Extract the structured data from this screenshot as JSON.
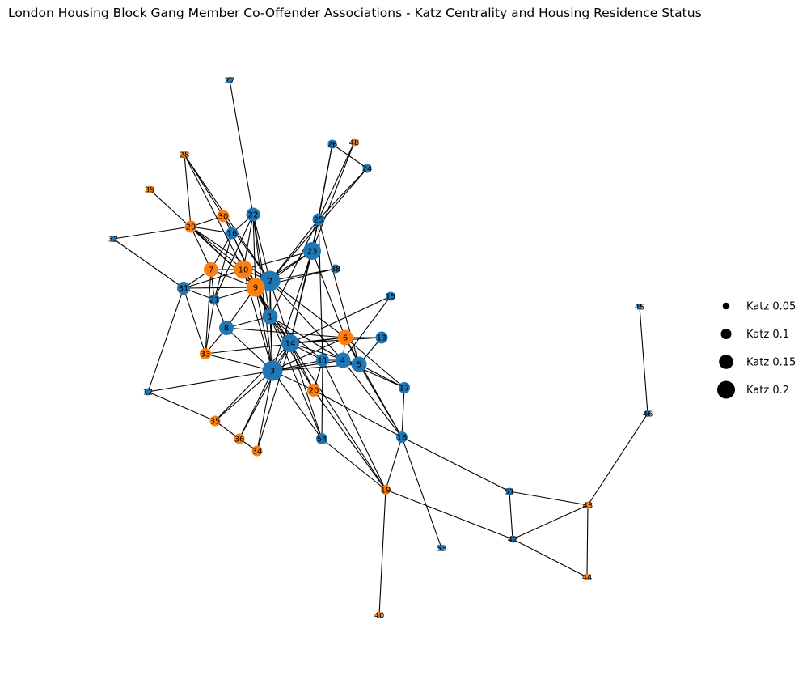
{
  "title": "London Housing Block Gang Member Co-Offender Associations - Katz Centrality and Housing Residence Status",
  "colors": {
    "blue": "#1f77b4",
    "orange": "#ff7f0e",
    "edge": "#000000"
  },
  "legend": [
    {
      "label": "Katz 0.05",
      "katz": 0.05
    },
    {
      "label": "Katz 0.1",
      "katz": 0.1
    },
    {
      "label": "Katz 0.15",
      "katz": 0.15
    },
    {
      "label": "Katz 0.2",
      "katz": 0.2
    }
  ],
  "nodes": [
    {
      "id": "1",
      "color": "blue",
      "katz": 0.15
    },
    {
      "id": "2",
      "color": "blue",
      "katz": 0.21
    },
    {
      "id": "3",
      "color": "blue",
      "katz": 0.21
    },
    {
      "id": "4",
      "color": "blue",
      "katz": 0.15
    },
    {
      "id": "5",
      "color": "blue",
      "katz": 0.15
    },
    {
      "id": "6",
      "color": "orange",
      "katz": 0.15
    },
    {
      "id": "7",
      "color": "orange",
      "katz": 0.14
    },
    {
      "id": "8",
      "color": "blue",
      "katz": 0.14
    },
    {
      "id": "9",
      "color": "orange",
      "katz": 0.19
    },
    {
      "id": "10",
      "color": "orange",
      "katz": 0.19
    },
    {
      "id": "11",
      "color": "blue",
      "katz": 0.12
    },
    {
      "id": "12",
      "color": "blue",
      "katz": 0.05
    },
    {
      "id": "13",
      "color": "blue",
      "katz": 0.11
    },
    {
      "id": "14",
      "color": "blue",
      "katz": 0.18
    },
    {
      "id": "15",
      "color": "blue",
      "katz": 0.07
    },
    {
      "id": "16",
      "color": "blue",
      "katz": 0.11
    },
    {
      "id": "17",
      "color": "blue",
      "katz": 0.1
    },
    {
      "id": "18",
      "color": "blue",
      "katz": 0.1
    },
    {
      "id": "19",
      "color": "orange",
      "katz": 0.08
    },
    {
      "id": "20",
      "color": "orange",
      "katz": 0.12
    },
    {
      "id": "21",
      "color": "blue",
      "katz": 0.09
    },
    {
      "id": "22",
      "color": "blue",
      "katz": 0.13
    },
    {
      "id": "23",
      "color": "blue",
      "katz": 0.18
    },
    {
      "id": "24",
      "color": "blue",
      "katz": 0.07
    },
    {
      "id": "25",
      "color": "blue",
      "katz": 0.11
    },
    {
      "id": "26",
      "color": "blue",
      "katz": 0.07
    },
    {
      "id": "27",
      "color": "blue",
      "katz": 0.04
    },
    {
      "id": "28",
      "color": "orange",
      "katz": 0.05
    },
    {
      "id": "29",
      "color": "orange",
      "katz": 0.11
    },
    {
      "id": "30",
      "color": "orange",
      "katz": 0.11
    },
    {
      "id": "31",
      "color": "blue",
      "katz": 0.12
    },
    {
      "id": "32",
      "color": "blue",
      "katz": 0.04
    },
    {
      "id": "33",
      "color": "orange",
      "katz": 0.1
    },
    {
      "id": "34",
      "color": "orange",
      "katz": 0.09
    },
    {
      "id": "35",
      "color": "orange",
      "katz": 0.09
    },
    {
      "id": "36",
      "color": "orange",
      "katz": 0.09
    },
    {
      "id": "38",
      "color": "blue",
      "katz": 0.07
    },
    {
      "id": "39",
      "color": "orange",
      "katz": 0.05
    },
    {
      "id": "40",
      "color": "orange",
      "katz": 0.04
    },
    {
      "id": "42",
      "color": "blue",
      "katz": 0.05
    },
    {
      "id": "43",
      "color": "orange",
      "katz": 0.05
    },
    {
      "id": "44",
      "color": "orange",
      "katz": 0.04
    },
    {
      "id": "45",
      "color": "blue",
      "katz": 0.03
    },
    {
      "id": "46",
      "color": "blue",
      "katz": 0.04
    },
    {
      "id": "48",
      "color": "orange",
      "katz": 0.05
    },
    {
      "id": "51",
      "color": "blue",
      "katz": 0.05
    },
    {
      "id": "53",
      "color": "blue",
      "katz": 0.04
    },
    {
      "id": "54",
      "color": "blue",
      "katz": 0.1
    }
  ],
  "edges": [
    [
      "27",
      "22"
    ],
    [
      "28",
      "29"
    ],
    [
      "28",
      "10"
    ],
    [
      "28",
      "30"
    ],
    [
      "28",
      "2"
    ],
    [
      "39",
      "9"
    ],
    [
      "32",
      "29"
    ],
    [
      "32",
      "31"
    ],
    [
      "29",
      "30"
    ],
    [
      "29",
      "16"
    ],
    [
      "29",
      "10"
    ],
    [
      "29",
      "9"
    ],
    [
      "29",
      "2"
    ],
    [
      "29",
      "7"
    ],
    [
      "30",
      "16"
    ],
    [
      "30",
      "2"
    ],
    [
      "22",
      "16"
    ],
    [
      "22",
      "10"
    ],
    [
      "22",
      "9"
    ],
    [
      "22",
      "2"
    ],
    [
      "22",
      "1"
    ],
    [
      "22",
      "3"
    ],
    [
      "22",
      "21"
    ],
    [
      "16",
      "7"
    ],
    [
      "16",
      "21"
    ],
    [
      "16",
      "9"
    ],
    [
      "16",
      "1"
    ],
    [
      "7",
      "10"
    ],
    [
      "7",
      "9"
    ],
    [
      "7",
      "31"
    ],
    [
      "7",
      "21"
    ],
    [
      "7",
      "33"
    ],
    [
      "31",
      "10"
    ],
    [
      "31",
      "9"
    ],
    [
      "31",
      "21"
    ],
    [
      "31",
      "33"
    ],
    [
      "31",
      "12"
    ],
    [
      "21",
      "9"
    ],
    [
      "21",
      "8"
    ],
    [
      "21",
      "33"
    ],
    [
      "10",
      "9"
    ],
    [
      "10",
      "2"
    ],
    [
      "10",
      "1"
    ],
    [
      "10",
      "14"
    ],
    [
      "10",
      "3"
    ],
    [
      "10",
      "23"
    ],
    [
      "9",
      "2"
    ],
    [
      "9",
      "1"
    ],
    [
      "9",
      "8"
    ],
    [
      "9",
      "14"
    ],
    [
      "9",
      "3"
    ],
    [
      "9",
      "38"
    ],
    [
      "9",
      "23"
    ],
    [
      "2",
      "23"
    ],
    [
      "2",
      "25"
    ],
    [
      "2",
      "38"
    ],
    [
      "2",
      "1"
    ],
    [
      "2",
      "14"
    ],
    [
      "2",
      "3"
    ],
    [
      "2",
      "6"
    ],
    [
      "2",
      "4"
    ],
    [
      "2",
      "24"
    ],
    [
      "23",
      "25"
    ],
    [
      "23",
      "26"
    ],
    [
      "23",
      "48"
    ],
    [
      "23",
      "14"
    ],
    [
      "23",
      "6"
    ],
    [
      "23",
      "3"
    ],
    [
      "25",
      "26"
    ],
    [
      "25",
      "48"
    ],
    [
      "25",
      "24"
    ],
    [
      "25",
      "11"
    ],
    [
      "25",
      "14"
    ],
    [
      "25",
      "5"
    ],
    [
      "25",
      "1"
    ],
    [
      "26",
      "24"
    ],
    [
      "1",
      "8"
    ],
    [
      "1",
      "14"
    ],
    [
      "1",
      "3"
    ],
    [
      "1",
      "11"
    ],
    [
      "1",
      "20"
    ],
    [
      "1",
      "4"
    ],
    [
      "1",
      "54"
    ],
    [
      "8",
      "33"
    ],
    [
      "8",
      "6"
    ],
    [
      "14",
      "6"
    ],
    [
      "14",
      "15"
    ],
    [
      "14",
      "11"
    ],
    [
      "14",
      "20"
    ],
    [
      "14",
      "54"
    ],
    [
      "14",
      "3"
    ],
    [
      "14",
      "5"
    ],
    [
      "14",
      "13"
    ],
    [
      "14",
      "19"
    ],
    [
      "14",
      "34"
    ],
    [
      "14",
      "36"
    ],
    [
      "14",
      "35"
    ],
    [
      "6",
      "13"
    ],
    [
      "6",
      "4"
    ],
    [
      "6",
      "5"
    ],
    [
      "6",
      "17"
    ],
    [
      "6",
      "18"
    ],
    [
      "6",
      "3"
    ],
    [
      "6",
      "33"
    ],
    [
      "13",
      "5"
    ],
    [
      "15",
      "4"
    ],
    [
      "4",
      "5"
    ],
    [
      "4",
      "11"
    ],
    [
      "4",
      "3"
    ],
    [
      "4",
      "18"
    ],
    [
      "4",
      "17"
    ],
    [
      "5",
      "3"
    ],
    [
      "5",
      "17"
    ],
    [
      "5",
      "18"
    ],
    [
      "11",
      "54"
    ],
    [
      "11",
      "3"
    ],
    [
      "11",
      "20"
    ],
    [
      "11",
      "19"
    ],
    [
      "3",
      "20"
    ],
    [
      "3",
      "35"
    ],
    [
      "3",
      "36"
    ],
    [
      "3",
      "34"
    ],
    [
      "3",
      "33"
    ],
    [
      "3",
      "12"
    ],
    [
      "3",
      "8"
    ],
    [
      "3",
      "54"
    ],
    [
      "20",
      "18"
    ],
    [
      "20",
      "19"
    ],
    [
      "35",
      "36"
    ],
    [
      "35",
      "12"
    ],
    [
      "36",
      "34"
    ],
    [
      "17",
      "18"
    ],
    [
      "18",
      "19"
    ],
    [
      "18",
      "51"
    ],
    [
      "18",
      "53"
    ],
    [
      "19",
      "40"
    ],
    [
      "19",
      "42"
    ],
    [
      "19",
      "54"
    ],
    [
      "51",
      "43"
    ],
    [
      "51",
      "42"
    ],
    [
      "42",
      "43"
    ],
    [
      "42",
      "44"
    ],
    [
      "43",
      "44"
    ],
    [
      "43",
      "46"
    ],
    [
      "46",
      "45"
    ]
  ]
}
